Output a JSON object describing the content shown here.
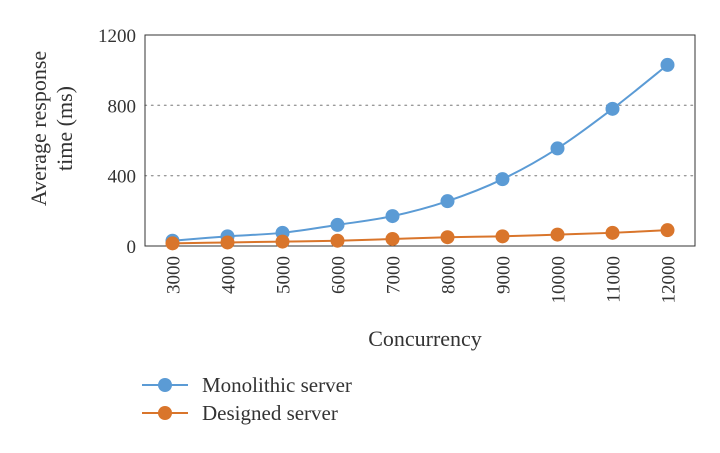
{
  "chart_data": {
    "type": "line",
    "title": "",
    "xlabel": "Concurrency",
    "ylabel_lines": [
      "Average response",
      "time (ms)"
    ],
    "x": [
      3000,
      4000,
      5000,
      6000,
      7000,
      8000,
      9000,
      10000,
      11000,
      12000
    ],
    "x_tick_labels": [
      "3000",
      "4000",
      "5000",
      "6000",
      "7000",
      "8000",
      "9000",
      "10000",
      "11000",
      "12000"
    ],
    "ylim": [
      0,
      1200
    ],
    "y_ticks": [
      0,
      400,
      800,
      1200
    ],
    "y_tick_labels": [
      "0",
      "400",
      "800",
      "1200"
    ],
    "grid": "horizontal-dotted",
    "legend_position": "bottom-left",
    "series": [
      {
        "name": "Monolithic server",
        "color": "#5b9bd5",
        "values": [
          30,
          55,
          75,
          120,
          170,
          255,
          380,
          555,
          780,
          1030
        ]
      },
      {
        "name": "Designed server",
        "color": "#d9752b",
        "values": [
          15,
          20,
          25,
          30,
          40,
          50,
          55,
          65,
          75,
          90
        ]
      }
    ]
  }
}
